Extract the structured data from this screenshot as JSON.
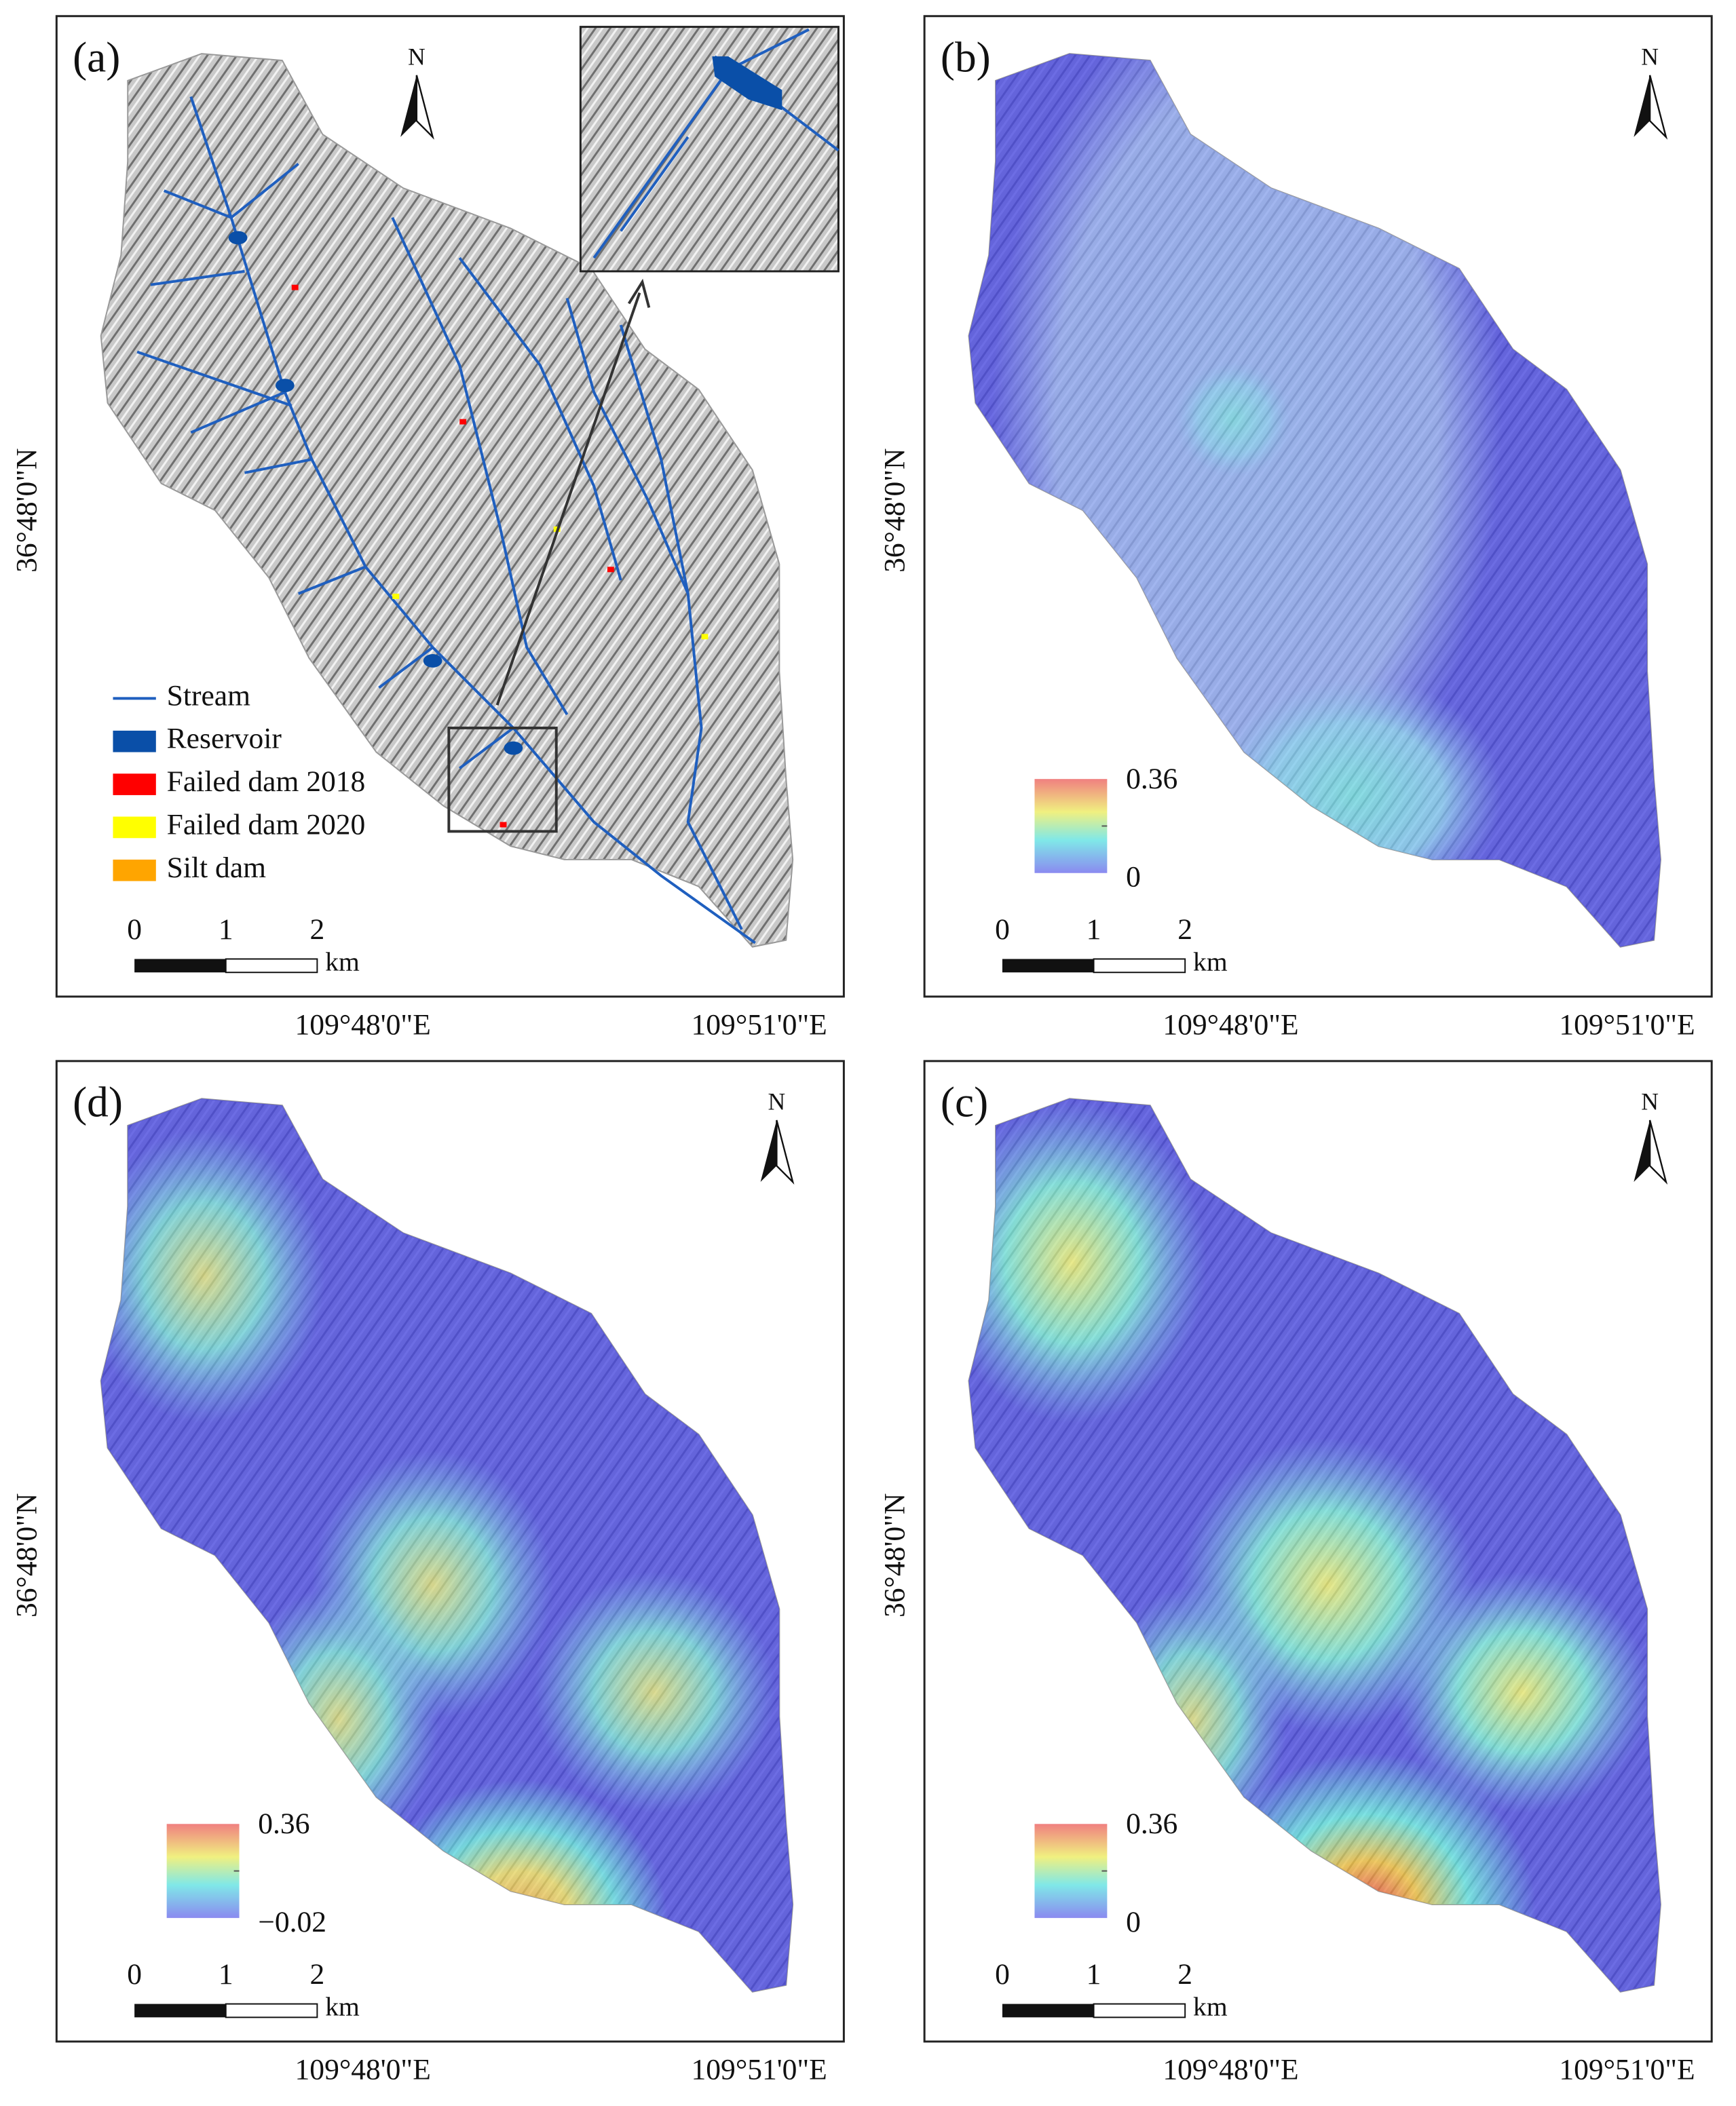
{
  "panels": [
    {
      "label": "(a)",
      "north": "N",
      "scale_bar": [
        "0",
        "1",
        "2",
        "km"
      ],
      "y_axis_label": "36°48'0\"N",
      "x_axis_labels": [
        "109°48'0\"E",
        "109°51'0\"E"
      ],
      "legend": [
        {
          "label": "Stream",
          "color": "#1f5fbf"
        },
        {
          "label": "Reservoir",
          "color": "#0a4fa8"
        },
        {
          "label": "Failed dam 2018",
          "color": "#ff0000"
        },
        {
          "label": "Failed dam 2020",
          "color": "#ffff00"
        },
        {
          "label": "Silt dam",
          "color": "#ffa500"
        }
      ]
    },
    {
      "label": "(b)",
      "north": "N",
      "scale_bar": [
        "0",
        "1",
        "2",
        "km"
      ],
      "y_axis_label": "36°48'0\"N",
      "x_axis_labels": [
        "109°48'0\"E",
        "109°51'0\"E"
      ],
      "colorbar": {
        "max": "0.36",
        "min": "0"
      }
    },
    {
      "label": "(d)",
      "north": "N",
      "scale_bar": [
        "0",
        "1",
        "2",
        "km"
      ],
      "y_axis_label": "36°48'0\"N",
      "x_axis_labels": [
        "109°48'0\"E",
        "109°51'0\"E"
      ],
      "colorbar": {
        "max": "0.36",
        "min": "−0.02"
      }
    },
    {
      "label": "(c)",
      "north": "N",
      "scale_bar": [
        "0",
        "1",
        "2",
        "km"
      ],
      "y_axis_label": "36°48'0\"N",
      "x_axis_labels": [
        "109°48'0\"E",
        "109°51'0\"E"
      ],
      "colorbar": {
        "max": "0.36",
        "min": "0"
      }
    }
  ]
}
